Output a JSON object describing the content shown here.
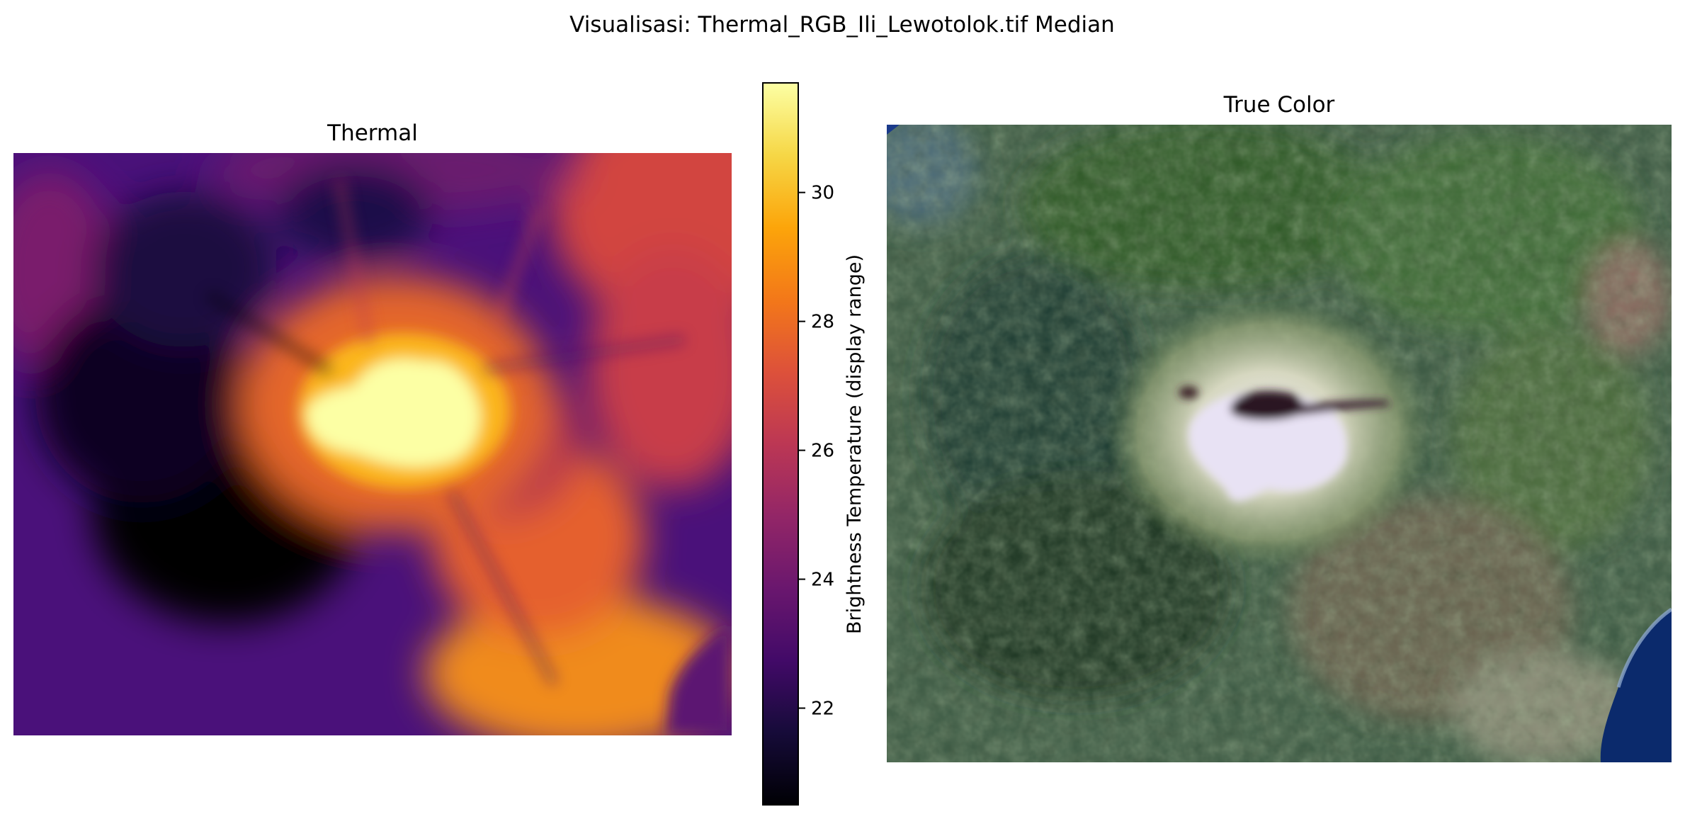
{
  "figure": {
    "suptitle": "Visualisasi: Thermal_RGB_Ili_Lewotolok.tif Median"
  },
  "chart_data": [
    {
      "type": "heatmap",
      "title": "Thermal",
      "colormap": "inferno",
      "axes_visible": false,
      "grid": false,
      "description_of_field": "hot spot at crater summit, cooler dark region to the west/southwest, warmer lowlands toward the east and south coast",
      "colorbar": {
        "label": "Brightness Temperature (display range)",
        "range": [
          20.5,
          31.7
        ],
        "ticks": [
          22,
          24,
          26,
          28,
          30
        ],
        "position": "right of thermal panel"
      }
    },
    {
      "type": "heatmap",
      "title": "True Color",
      "image_kind": "RGB satellite composite",
      "axes_visible": false,
      "grid": false,
      "colors": {
        "vegetation": "#3e5a3a",
        "summit_ash": "#d8dcc8",
        "crater": "#2a1a22",
        "sea": "#0c2a6a"
      }
    }
  ]
}
